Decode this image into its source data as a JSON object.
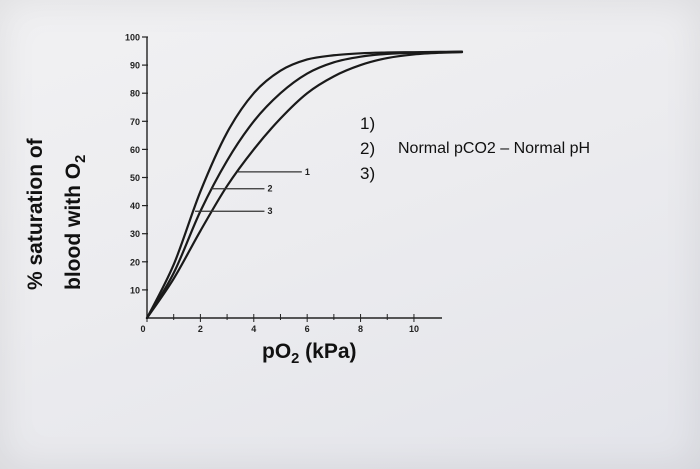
{
  "chart_data": {
    "type": "line",
    "ylabel_line1": "% saturation of",
    "ylabel_line2_main": "blood with O",
    "ylabel_line2_sub": "2",
    "xlabel_main": "pO",
    "xlabel_sub": "2",
    "xlabel_unit": " (kPa)",
    "xlim": [
      0,
      11.8
    ],
    "ylim": [
      0,
      100
    ],
    "x_ticks": [
      0,
      2,
      4,
      6,
      8,
      10
    ],
    "x_tick_labels": [
      "0",
      "2",
      "4",
      "6",
      "8",
      "10"
    ],
    "y_ticks": [
      10,
      20,
      30,
      40,
      50,
      60,
      70,
      80,
      90,
      100
    ],
    "y_tick_labels": [
      "10",
      "20",
      "30",
      "40",
      "50",
      "60",
      "70",
      "80",
      "90",
      "100"
    ],
    "series": [
      {
        "name": "1",
        "x": [
          0,
          1,
          2,
          3,
          4,
          5,
          6,
          7,
          8,
          9,
          10,
          11,
          11.8
        ],
        "values": [
          0,
          19,
          45,
          66,
          80,
          88,
          92,
          93.5,
          94.2,
          94.5,
          94.6,
          94.7,
          94.8
        ]
      },
      {
        "name": "2",
        "x": [
          0,
          1,
          2,
          3,
          4,
          5,
          6,
          7,
          8,
          9,
          10,
          11,
          11.8
        ],
        "values": [
          0,
          16,
          38,
          56,
          70,
          80,
          87,
          91,
          93,
          94,
          94.4,
          94.6,
          94.7
        ]
      },
      {
        "name": "3",
        "x": [
          0,
          1,
          2,
          3,
          4,
          5,
          6,
          7,
          8,
          9,
          10,
          11,
          11.8
        ],
        "values": [
          0,
          14,
          31,
          47,
          60,
          71,
          80,
          86,
          90,
          92.5,
          93.8,
          94.4,
          94.6
        ]
      }
    ],
    "marker_labels": [
      {
        "label": "1",
        "y": 52,
        "x_from": 3.4,
        "x_to": 5.8
      },
      {
        "label": "2",
        "y": 46,
        "x_from": 2.4,
        "x_to": 4.4
      },
      {
        "label": "3",
        "y": 38,
        "x_from": 1.8,
        "x_to": 4.4
      }
    ],
    "legend_numbers": [
      "1)",
      "2)",
      "3)"
    ],
    "legend_text": "Normal pCO2 – Normal pH"
  }
}
